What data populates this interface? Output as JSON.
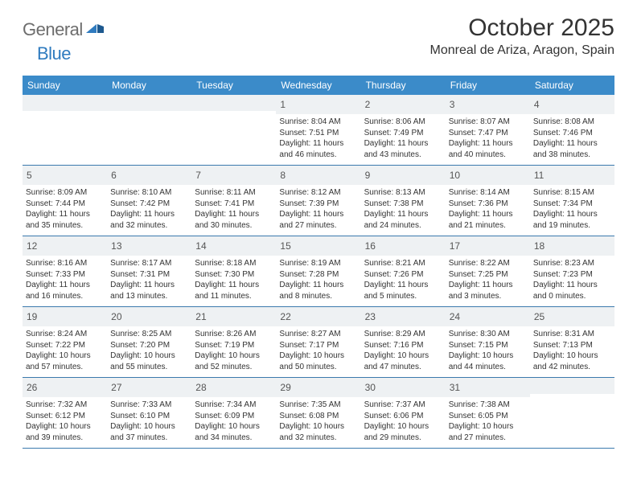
{
  "logo": {
    "general": "General",
    "blue": "Blue"
  },
  "header": {
    "title": "October 2025",
    "location": "Monreal de Ariza, Aragon, Spain"
  },
  "colors": {
    "header_bg": "#3b8bc9",
    "header_text": "#ffffff",
    "daynum_bg": "#eef1f3",
    "row_border": "#3b7aad",
    "logo_gray": "#6d6d6d",
    "logo_blue": "#2f7bbf",
    "body_text": "#333333"
  },
  "dayNames": [
    "Sunday",
    "Monday",
    "Tuesday",
    "Wednesday",
    "Thursday",
    "Friday",
    "Saturday"
  ],
  "weeks": [
    [
      {
        "n": "",
        "sr": "",
        "ss": "",
        "dl": ""
      },
      {
        "n": "",
        "sr": "",
        "ss": "",
        "dl": ""
      },
      {
        "n": "",
        "sr": "",
        "ss": "",
        "dl": ""
      },
      {
        "n": "1",
        "sr": "Sunrise: 8:04 AM",
        "ss": "Sunset: 7:51 PM",
        "dl": "Daylight: 11 hours and 46 minutes."
      },
      {
        "n": "2",
        "sr": "Sunrise: 8:06 AM",
        "ss": "Sunset: 7:49 PM",
        "dl": "Daylight: 11 hours and 43 minutes."
      },
      {
        "n": "3",
        "sr": "Sunrise: 8:07 AM",
        "ss": "Sunset: 7:47 PM",
        "dl": "Daylight: 11 hours and 40 minutes."
      },
      {
        "n": "4",
        "sr": "Sunrise: 8:08 AM",
        "ss": "Sunset: 7:46 PM",
        "dl": "Daylight: 11 hours and 38 minutes."
      }
    ],
    [
      {
        "n": "5",
        "sr": "Sunrise: 8:09 AM",
        "ss": "Sunset: 7:44 PM",
        "dl": "Daylight: 11 hours and 35 minutes."
      },
      {
        "n": "6",
        "sr": "Sunrise: 8:10 AM",
        "ss": "Sunset: 7:42 PM",
        "dl": "Daylight: 11 hours and 32 minutes."
      },
      {
        "n": "7",
        "sr": "Sunrise: 8:11 AM",
        "ss": "Sunset: 7:41 PM",
        "dl": "Daylight: 11 hours and 30 minutes."
      },
      {
        "n": "8",
        "sr": "Sunrise: 8:12 AM",
        "ss": "Sunset: 7:39 PM",
        "dl": "Daylight: 11 hours and 27 minutes."
      },
      {
        "n": "9",
        "sr": "Sunrise: 8:13 AM",
        "ss": "Sunset: 7:38 PM",
        "dl": "Daylight: 11 hours and 24 minutes."
      },
      {
        "n": "10",
        "sr": "Sunrise: 8:14 AM",
        "ss": "Sunset: 7:36 PM",
        "dl": "Daylight: 11 hours and 21 minutes."
      },
      {
        "n": "11",
        "sr": "Sunrise: 8:15 AM",
        "ss": "Sunset: 7:34 PM",
        "dl": "Daylight: 11 hours and 19 minutes."
      }
    ],
    [
      {
        "n": "12",
        "sr": "Sunrise: 8:16 AM",
        "ss": "Sunset: 7:33 PM",
        "dl": "Daylight: 11 hours and 16 minutes."
      },
      {
        "n": "13",
        "sr": "Sunrise: 8:17 AM",
        "ss": "Sunset: 7:31 PM",
        "dl": "Daylight: 11 hours and 13 minutes."
      },
      {
        "n": "14",
        "sr": "Sunrise: 8:18 AM",
        "ss": "Sunset: 7:30 PM",
        "dl": "Daylight: 11 hours and 11 minutes."
      },
      {
        "n": "15",
        "sr": "Sunrise: 8:19 AM",
        "ss": "Sunset: 7:28 PM",
        "dl": "Daylight: 11 hours and 8 minutes."
      },
      {
        "n": "16",
        "sr": "Sunrise: 8:21 AM",
        "ss": "Sunset: 7:26 PM",
        "dl": "Daylight: 11 hours and 5 minutes."
      },
      {
        "n": "17",
        "sr": "Sunrise: 8:22 AM",
        "ss": "Sunset: 7:25 PM",
        "dl": "Daylight: 11 hours and 3 minutes."
      },
      {
        "n": "18",
        "sr": "Sunrise: 8:23 AM",
        "ss": "Sunset: 7:23 PM",
        "dl": "Daylight: 11 hours and 0 minutes."
      }
    ],
    [
      {
        "n": "19",
        "sr": "Sunrise: 8:24 AM",
        "ss": "Sunset: 7:22 PM",
        "dl": "Daylight: 10 hours and 57 minutes."
      },
      {
        "n": "20",
        "sr": "Sunrise: 8:25 AM",
        "ss": "Sunset: 7:20 PM",
        "dl": "Daylight: 10 hours and 55 minutes."
      },
      {
        "n": "21",
        "sr": "Sunrise: 8:26 AM",
        "ss": "Sunset: 7:19 PM",
        "dl": "Daylight: 10 hours and 52 minutes."
      },
      {
        "n": "22",
        "sr": "Sunrise: 8:27 AM",
        "ss": "Sunset: 7:17 PM",
        "dl": "Daylight: 10 hours and 50 minutes."
      },
      {
        "n": "23",
        "sr": "Sunrise: 8:29 AM",
        "ss": "Sunset: 7:16 PM",
        "dl": "Daylight: 10 hours and 47 minutes."
      },
      {
        "n": "24",
        "sr": "Sunrise: 8:30 AM",
        "ss": "Sunset: 7:15 PM",
        "dl": "Daylight: 10 hours and 44 minutes."
      },
      {
        "n": "25",
        "sr": "Sunrise: 8:31 AM",
        "ss": "Sunset: 7:13 PM",
        "dl": "Daylight: 10 hours and 42 minutes."
      }
    ],
    [
      {
        "n": "26",
        "sr": "Sunrise: 7:32 AM",
        "ss": "Sunset: 6:12 PM",
        "dl": "Daylight: 10 hours and 39 minutes."
      },
      {
        "n": "27",
        "sr": "Sunrise: 7:33 AM",
        "ss": "Sunset: 6:10 PM",
        "dl": "Daylight: 10 hours and 37 minutes."
      },
      {
        "n": "28",
        "sr": "Sunrise: 7:34 AM",
        "ss": "Sunset: 6:09 PM",
        "dl": "Daylight: 10 hours and 34 minutes."
      },
      {
        "n": "29",
        "sr": "Sunrise: 7:35 AM",
        "ss": "Sunset: 6:08 PM",
        "dl": "Daylight: 10 hours and 32 minutes."
      },
      {
        "n": "30",
        "sr": "Sunrise: 7:37 AM",
        "ss": "Sunset: 6:06 PM",
        "dl": "Daylight: 10 hours and 29 minutes."
      },
      {
        "n": "31",
        "sr": "Sunrise: 7:38 AM",
        "ss": "Sunset: 6:05 PM",
        "dl": "Daylight: 10 hours and 27 minutes."
      },
      {
        "n": "",
        "sr": "",
        "ss": "",
        "dl": ""
      }
    ]
  ]
}
